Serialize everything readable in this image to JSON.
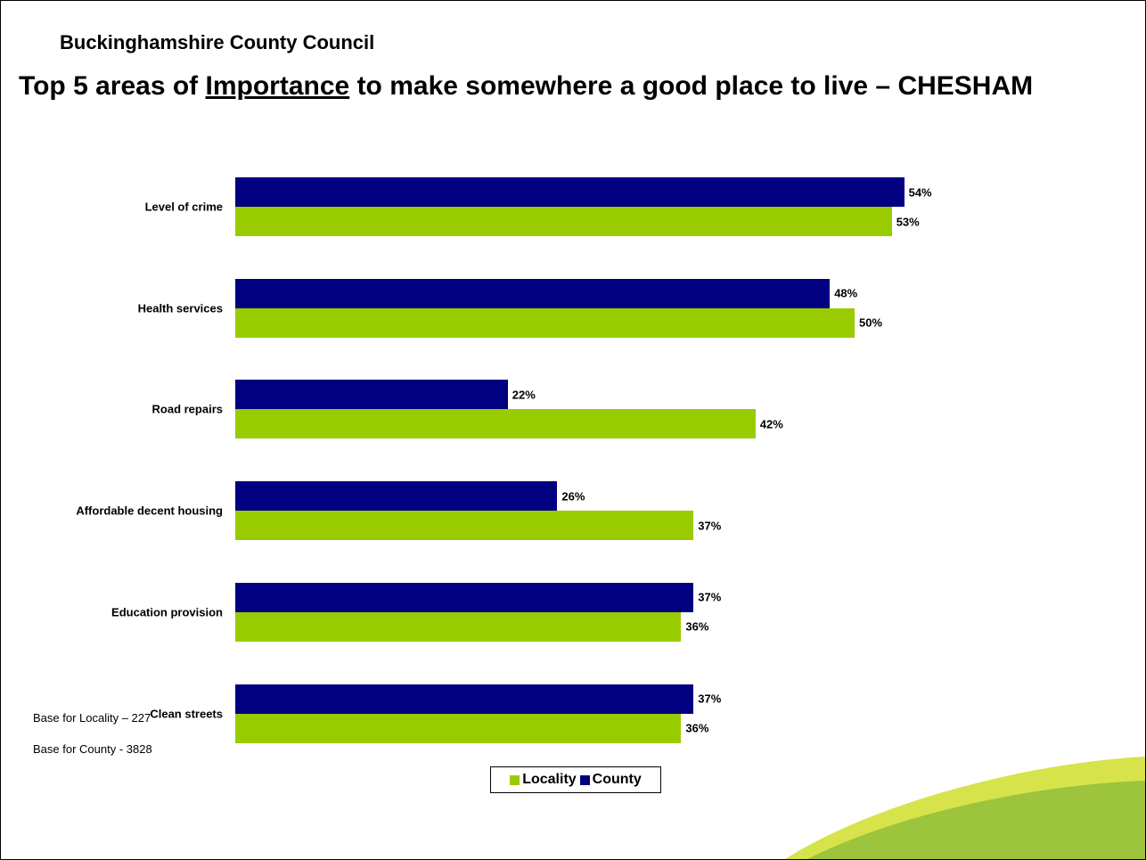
{
  "header": {
    "org": "Buckinghamshire County Council",
    "title_pre": "Top 5 areas of ",
    "title_underlined": "Importance",
    "title_post": " to make somewhere a good place to live – CHESHAM"
  },
  "chart_data": {
    "type": "bar",
    "orientation": "horizontal",
    "categories": [
      "Level of crime",
      "Health services",
      "Road repairs",
      "Affordable decent housing",
      "Education provision",
      "Clean streets"
    ],
    "series": [
      {
        "name": "County",
        "values": [
          54,
          48,
          22,
          26,
          37,
          37
        ],
        "color": "#000080"
      },
      {
        "name": "Locality",
        "values": [
          53,
          50,
          42,
          37,
          36,
          36
        ],
        "color": "#99cc00"
      }
    ],
    "value_suffix": "%",
    "grid": false,
    "legend_position": "bottom"
  },
  "legend": {
    "locality": "Locality",
    "county": "County"
  },
  "footer": {
    "base_locality": "Base for Locality – 227",
    "base_county": "Base for County - 3828"
  }
}
